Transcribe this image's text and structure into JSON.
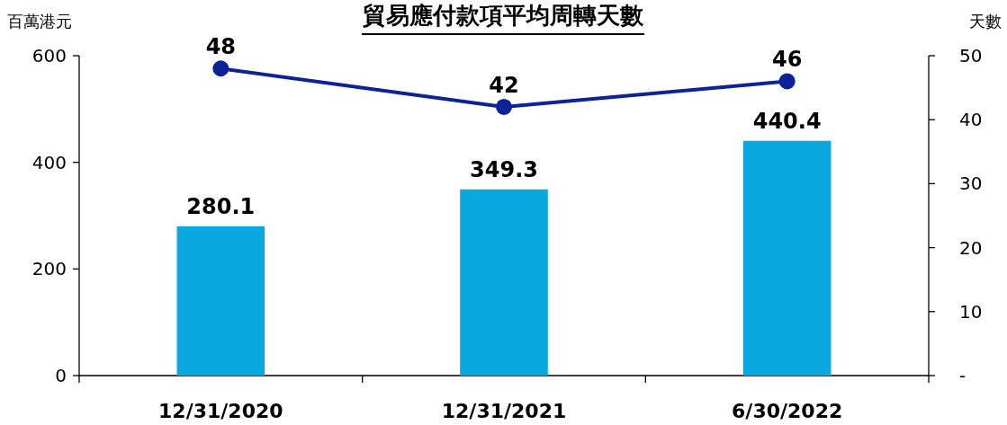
{
  "chart_data": {
    "type": "bar",
    "title": "貿易應付款項平均周轉天數",
    "ylabel": "百萬港元",
    "y2label": "天數",
    "categories": [
      "12/31/2020",
      "12/31/2021",
      "6/30/2022"
    ],
    "series": [
      {
        "color": "#0aa8e0",
        "values": [
          280.1,
          349.3,
          440.4
        ]
      },
      {
        "type": "line",
        "axis": "y2",
        "color": "#0b2299",
        "marker": "circle",
        "values": [
          48,
          42,
          46
        ]
      }
    ],
    "ylim": [
      0,
      600
    ],
    "yticks": [
      0,
      200,
      400,
      600
    ],
    "y2lim": [
      0,
      50
    ],
    "y2ticks": [
      {
        "value": 0,
        "label": "-"
      },
      10,
      20,
      30,
      40,
      50
    ],
    "data_labels": true
  }
}
